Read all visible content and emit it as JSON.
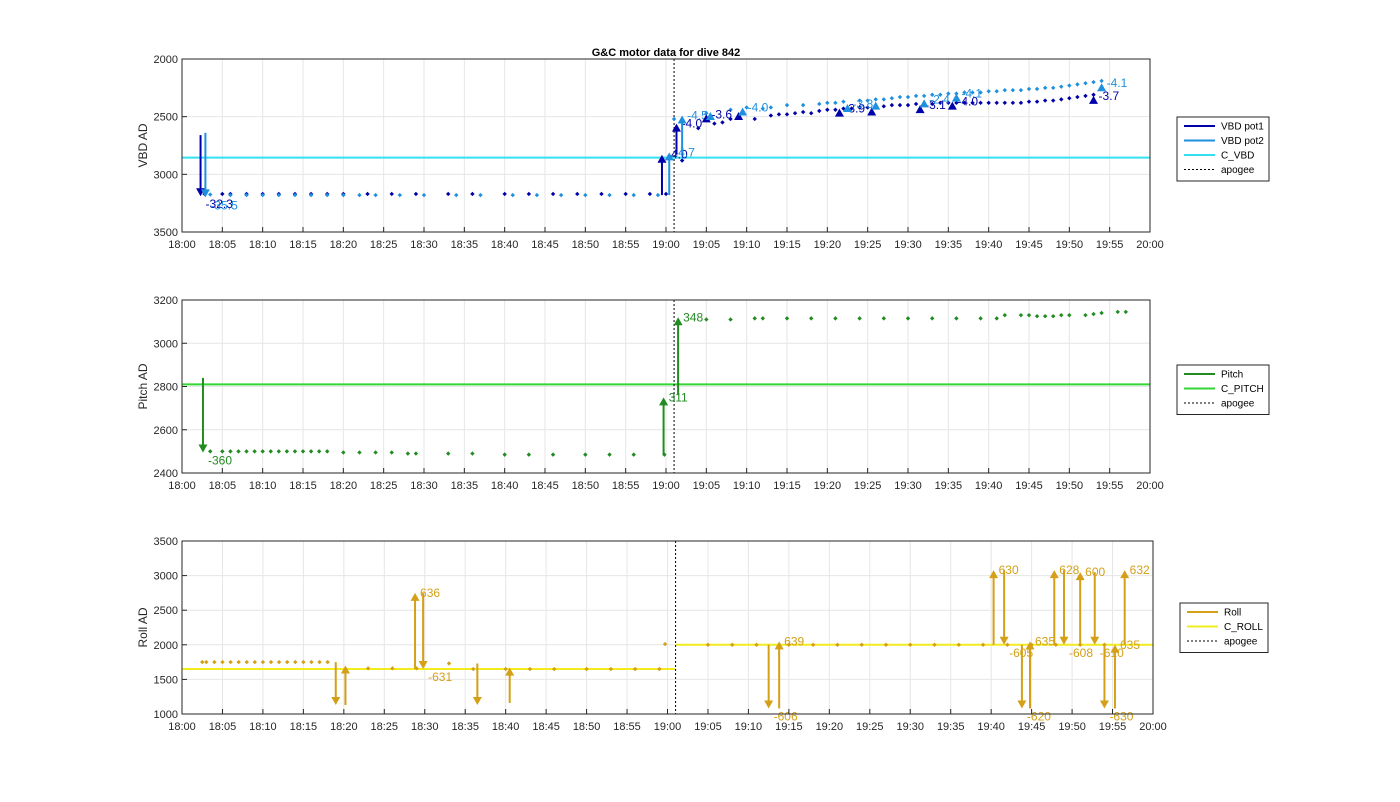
{
  "chart_data": [
    {
      "type": "line",
      "title": "G&C motor data for dive 842",
      "ylabel": "VBD AD",
      "xlim": [
        "18:00",
        "20:00"
      ],
      "ylim": [
        3500,
        2000
      ],
      "y_reversed": true,
      "yticks": [
        2000,
        2500,
        3000,
        3500
      ],
      "xticks": [
        "18:00",
        "18:05",
        "18:10",
        "18:15",
        "18:20",
        "18:25",
        "18:30",
        "18:35",
        "18:40",
        "18:45",
        "18:50",
        "18:55",
        "19:00",
        "19:05",
        "19:10",
        "19:15",
        "19:20",
        "19:25",
        "19:30",
        "19:35",
        "19:40",
        "19:45",
        "19:50",
        "19:55",
        "20:00"
      ],
      "grid": true,
      "legend_position": "outside-right",
      "legend": [
        {
          "name": "VBD pot1",
          "color": "#0000AA"
        },
        {
          "name": "VBD pot2",
          "color": "#1E90E0"
        },
        {
          "name": "C_VBD",
          "color": "#33E0F0"
        },
        {
          "name": "apogee",
          "color": "#000000",
          "dashed": true
        }
      ],
      "lines": [
        {
          "name": "C_VBD",
          "y": 2855,
          "color": "#33E0F0"
        },
        {
          "name": "apogee",
          "x": 61,
          "color": "#000000",
          "dashed": true
        }
      ],
      "series": [
        {
          "name": "VBD pot1",
          "color": "#0000AA",
          "x": [
            2.8,
            5,
            6,
            8,
            10,
            12,
            14,
            16,
            18,
            20,
            23,
            26,
            29,
            33,
            36,
            40,
            43,
            46,
            49,
            52,
            55,
            58,
            60,
            62,
            64,
            66,
            67,
            68,
            69,
            71,
            73,
            74,
            75,
            76,
            77,
            78,
            79,
            80,
            81,
            82,
            83,
            84,
            85,
            86,
            87,
            88,
            89,
            90,
            91,
            92,
            93,
            94,
            95,
            96,
            97,
            98,
            99,
            100,
            101,
            102,
            103,
            104,
            105,
            106,
            107,
            108,
            109,
            110,
            111,
            112,
            113
          ],
          "y": [
            3170,
            3170,
            3170,
            3170,
            3170,
            3170,
            3170,
            3170,
            3170,
            3170,
            3170,
            3170,
            3170,
            3170,
            3170,
            3170,
            3170,
            3170,
            3170,
            3170,
            3170,
            3170,
            3170,
            2880,
            2600,
            2560,
            2550,
            2520,
            2500,
            2520,
            2490,
            2480,
            2480,
            2470,
            2460,
            2470,
            2450,
            2440,
            2440,
            2430,
            2430,
            2420,
            2420,
            2410,
            2410,
            2400,
            2400,
            2400,
            2390,
            2390,
            2390,
            2380,
            2380,
            2380,
            2380,
            2380,
            2380,
            2380,
            2380,
            2380,
            2380,
            2380,
            2370,
            2370,
            2360,
            2360,
            2350,
            2340,
            2330,
            2320,
            2310
          ]
        },
        {
          "name": "VBD pot2",
          "color": "#1E90E0",
          "x": [
            3.5,
            6,
            8,
            10,
            12,
            14,
            16,
            18,
            20,
            22,
            24,
            27,
            30,
            34,
            37,
            41,
            44,
            47,
            50,
            53,
            56,
            59,
            61,
            65,
            68,
            70,
            72,
            73,
            75,
            77,
            79,
            80,
            81,
            82,
            84,
            85,
            86,
            87,
            88,
            89,
            90,
            91,
            92,
            93,
            94,
            95,
            96,
            97,
            98,
            99,
            100,
            101,
            102,
            103,
            104,
            105,
            106,
            107,
            108,
            109,
            110,
            111,
            112,
            113,
            114
          ],
          "y": [
            3175,
            3180,
            3180,
            3180,
            3180,
            3180,
            3180,
            3180,
            3180,
            3180,
            3180,
            3180,
            3180,
            3180,
            3180,
            3180,
            3180,
            3180,
            3180,
            3180,
            3180,
            3180,
            2520,
            2470,
            2440,
            2420,
            2430,
            2420,
            2400,
            2400,
            2390,
            2380,
            2380,
            2370,
            2360,
            2360,
            2350,
            2350,
            2340,
            2330,
            2330,
            2320,
            2320,
            2310,
            2310,
            2300,
            2300,
            2290,
            2290,
            2290,
            2280,
            2280,
            2270,
            2270,
            2270,
            2260,
            2260,
            2250,
            2250,
            2240,
            2230,
            2220,
            2210,
            2200,
            2190
          ]
        }
      ],
      "events": [
        {
          "series": "VBD pot1",
          "x": 2.3,
          "from": 2660,
          "to": 3190,
          "label": "-32.3"
        },
        {
          "series": "VBD pot2",
          "x": 2.9,
          "from": 2640,
          "to": 3200,
          "label": "-35.5"
        },
        {
          "series": "VBD pot1",
          "x": 59.5,
          "from": 3180,
          "to": 2830,
          "label": "-4.0"
        },
        {
          "series": "VBD pot2",
          "x": 60.4,
          "from": 3180,
          "to": 2810,
          "label": "-4.7"
        },
        {
          "series": "VBD pot1",
          "x": 61.3,
          "from": 2830,
          "to": 2560,
          "label": "-4.0"
        },
        {
          "series": "VBD pot2",
          "x": 62,
          "from": 2810,
          "to": 2490,
          "label": "-4.5"
        },
        {
          "series": "VBD pot1",
          "x": 65,
          "from": 2520,
          "to": 2480,
          "label": "-3.6"
        },
        {
          "series": "VBD pot2",
          "x": 65.5,
          "from": 2500,
          "to": 2460,
          "label": ""
        },
        {
          "series": "VBD pot1",
          "x": 69,
          "from": 2500,
          "to": 2460,
          "label": ""
        },
        {
          "series": "VBD pot2",
          "x": 69.5,
          "from": 2470,
          "to": 2420,
          "label": "-4.0"
        },
        {
          "series": "VBD pot1",
          "x": 81.5,
          "from": 2470,
          "to": 2430,
          "label": "-3.9"
        },
        {
          "series": "VBD pot2",
          "x": 82.5,
          "from": 2430,
          "to": 2390,
          "label": "-3.8"
        },
        {
          "series": "VBD pot1",
          "x": 85.5,
          "from": 2450,
          "to": 2420,
          "label": ""
        },
        {
          "series": "VBD pot2",
          "x": 86,
          "from": 2410,
          "to": 2370,
          "label": ""
        },
        {
          "series": "VBD pot1",
          "x": 91.5,
          "from": 2440,
          "to": 2400,
          "label": "-3.1"
        },
        {
          "series": "VBD pot2",
          "x": 92,
          "from": 2400,
          "to": 2350,
          "label": "-2.4"
        },
        {
          "series": "VBD pot1",
          "x": 95.5,
          "from": 2410,
          "to": 2370,
          "label": "-4.0"
        },
        {
          "series": "VBD pot2",
          "x": 96,
          "from": 2350,
          "to": 2300,
          "label": "-4.1"
        },
        {
          "series": "VBD pot1",
          "x": 113,
          "from": 2360,
          "to": 2320,
          "label": "-3.7"
        },
        {
          "series": "VBD pot2",
          "x": 114,
          "from": 2260,
          "to": 2210,
          "label": "-4.1"
        }
      ]
    },
    {
      "type": "line",
      "title": "",
      "ylabel": "Pitch AD",
      "xlim": [
        "18:00",
        "20:00"
      ],
      "ylim": [
        2400,
        3200
      ],
      "yticks": [
        2400,
        2600,
        2800,
        3000,
        3200
      ],
      "xticks": [
        "18:00",
        "18:05",
        "18:10",
        "18:15",
        "18:20",
        "18:25",
        "18:30",
        "18:35",
        "18:40",
        "18:45",
        "18:50",
        "18:55",
        "19:00",
        "19:05",
        "19:10",
        "19:15",
        "19:20",
        "19:25",
        "19:30",
        "19:35",
        "19:40",
        "19:45",
        "19:50",
        "19:55",
        "20:00"
      ],
      "grid": true,
      "legend_position": "outside-right",
      "legend": [
        {
          "name": "Pitch",
          "color": "#228B22"
        },
        {
          "name": "C_PITCH",
          "color": "#33D633"
        },
        {
          "name": "apogee",
          "color": "#000000",
          "dashed": true
        }
      ],
      "lines": [
        {
          "name": "C_PITCH",
          "y": 2810,
          "color": "#33D633"
        },
        {
          "name": "apogee",
          "x": 61,
          "color": "#000000",
          "dashed": true
        }
      ],
      "series": [
        {
          "name": "Pitch",
          "color": "#228B22",
          "x": [
            3.5,
            5,
            6,
            7,
            8,
            9,
            10,
            11,
            12,
            13,
            14,
            15,
            16,
            17,
            18,
            20,
            22,
            24,
            26,
            28,
            29,
            33,
            36,
            40,
            43,
            46,
            50,
            53,
            56,
            59.8,
            65,
            68,
            71,
            72,
            75,
            78,
            81,
            84,
            87,
            90,
            93,
            96,
            99,
            101,
            102,
            104,
            105,
            106,
            107,
            108,
            109,
            110,
            112,
            113,
            114,
            116,
            117
          ],
          "y": [
            2500,
            2500,
            2500,
            2500,
            2500,
            2500,
            2500,
            2500,
            2500,
            2500,
            2500,
            2500,
            2500,
            2500,
            2500,
            2495,
            2495,
            2495,
            2495,
            2490,
            2490,
            2490,
            2490,
            2485,
            2485,
            2485,
            2485,
            2485,
            2485,
            2485,
            3110,
            3110,
            3115,
            3115,
            3115,
            3115,
            3115,
            3115,
            3115,
            3115,
            3115,
            3115,
            3115,
            3115,
            3130,
            3130,
            3130,
            3125,
            3125,
            3125,
            3130,
            3130,
            3130,
            3135,
            3140,
            3145,
            3145
          ]
        }
      ],
      "events": [
        {
          "series": "Pitch",
          "x": 2.6,
          "from": 2840,
          "to": 2495,
          "label": "-360"
        },
        {
          "series": "Pitch",
          "x": 59.7,
          "from": 2485,
          "to": 2750,
          "label": "311"
        },
        {
          "series": "Pitch",
          "x": 61.5,
          "from": 2760,
          "to": 3120,
          "label": "348"
        }
      ]
    },
    {
      "type": "line",
      "title": "",
      "ylabel": "Roll AD",
      "xlim": [
        "18:00",
        "20:00"
      ],
      "ylim": [
        1000,
        3500
      ],
      "yticks": [
        1000,
        1500,
        2000,
        2500,
        3000,
        3500
      ],
      "xticks": [
        "18:00",
        "18:05",
        "18:10",
        "18:15",
        "18:20",
        "18:25",
        "18:30",
        "18:35",
        "18:40",
        "18:45",
        "18:50",
        "18:55",
        "19:00",
        "19:05",
        "19:10",
        "19:15",
        "19:20",
        "19:25",
        "19:30",
        "19:35",
        "19:40",
        "19:45",
        "19:50",
        "19:55",
        "20:00"
      ],
      "grid": true,
      "legend_position": "outside-right",
      "legend": [
        {
          "name": "Roll",
          "color": "#D4A017"
        },
        {
          "name": "C_ROLL",
          "color": "#F2EC1E"
        },
        {
          "name": "apogee",
          "color": "#000000",
          "dashed": true
        }
      ],
      "lines": [
        {
          "name": "C_ROLL",
          "y": 1650,
          "x_range": [
            0,
            61
          ],
          "color": "#F2EC1E"
        },
        {
          "name": "C_ROLL",
          "y": 2000,
          "x_range": [
            61,
            120
          ],
          "color": "#F2EC1E"
        },
        {
          "name": "apogee",
          "x": 61,
          "color": "#000000",
          "dashed": true
        }
      ],
      "series": [
        {
          "name": "Roll",
          "color": "#D4A017",
          "x": [
            2.5,
            3,
            4,
            5,
            6,
            7,
            8,
            9,
            10,
            11,
            12,
            13,
            14,
            15,
            16,
            17,
            18,
            23,
            26,
            29,
            33,
            36,
            40,
            43,
            46,
            50,
            53,
            56,
            59,
            59.7,
            65,
            68,
            71,
            75,
            78,
            81,
            84,
            87,
            90,
            93,
            96,
            99,
            102,
            105,
            108,
            111,
            114
          ],
          "y": [
            1750,
            1750,
            1750,
            1750,
            1750,
            1750,
            1750,
            1750,
            1750,
            1750,
            1750,
            1750,
            1750,
            1750,
            1750,
            1750,
            1750,
            1660,
            1660,
            1660,
            1730,
            1650,
            1650,
            1650,
            1650,
            1650,
            1650,
            1650,
            1650,
            2010,
            2000,
            2000,
            2000,
            2000,
            2000,
            2000,
            2000,
            2000,
            2000,
            2000,
            2000,
            2000,
            2000,
            2000,
            2000,
            2000,
            2000
          ]
        }
      ],
      "events": [
        {
          "series": "Roll",
          "x": 19,
          "from": 1750,
          "to": 1130,
          "label": ""
        },
        {
          "series": "Roll",
          "x": 20.2,
          "from": 1130,
          "to": 1700,
          "label": ""
        },
        {
          "series": "Roll",
          "x": 28.8,
          "from": 1650,
          "to": 2750,
          "label": "636"
        },
        {
          "series": "Roll",
          "x": 29.8,
          "from": 2750,
          "to": 1650,
          "label": "-631"
        },
        {
          "series": "Roll",
          "x": 36.5,
          "from": 1730,
          "to": 1130,
          "label": ""
        },
        {
          "series": "Roll",
          "x": 40.5,
          "from": 1160,
          "to": 1670,
          "label": ""
        },
        {
          "series": "Roll",
          "x": 72.5,
          "from": 2000,
          "to": 1080,
          "label": "-606"
        },
        {
          "series": "Roll",
          "x": 73.8,
          "from": 1080,
          "to": 2050,
          "label": "639"
        },
        {
          "series": "Roll",
          "x": 100.3,
          "from": 2000,
          "to": 3080,
          "label": "630"
        },
        {
          "series": "Roll",
          "x": 101.6,
          "from": 3080,
          "to": 2000,
          "label": "-605"
        },
        {
          "series": "Roll",
          "x": 103.8,
          "from": 2000,
          "to": 1080,
          "label": "-620"
        },
        {
          "series": "Roll",
          "x": 104.8,
          "from": 1080,
          "to": 2050,
          "label": "635"
        },
        {
          "series": "Roll",
          "x": 107.8,
          "from": 2000,
          "to": 3080,
          "label": "628"
        },
        {
          "series": "Roll",
          "x": 109,
          "from": 3080,
          "to": 2000,
          "label": "-608"
        },
        {
          "series": "Roll",
          "x": 111,
          "from": 2000,
          "to": 3050,
          "label": "600"
        },
        {
          "series": "Roll",
          "x": 112.8,
          "from": 3050,
          "to": 2000,
          "label": "-610"
        },
        {
          "series": "Roll",
          "x": 114,
          "from": 2000,
          "to": 1080,
          "label": "-630"
        },
        {
          "series": "Roll",
          "x": 115.3,
          "from": 1080,
          "to": 2000,
          "label": "635"
        },
        {
          "series": "Roll",
          "x": 116.5,
          "from": 2000,
          "to": 3080,
          "label": "632"
        }
      ]
    }
  ]
}
